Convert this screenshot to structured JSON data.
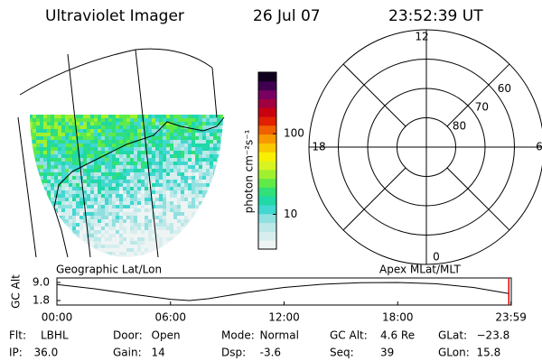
{
  "header": {
    "title": "Ultraviolet Imager",
    "date": "26 Jul 07",
    "time": "23:52:39 UT"
  },
  "colorbar": {
    "label": "photon cm⁻²s⁻¹",
    "scale": "log",
    "lim": [
      3.7,
      580
    ],
    "ticks": [
      10,
      100
    ],
    "colors": [
      "#eef4f4",
      "#d8eeee",
      "#bce8e8",
      "#90e0e0",
      "#40d8d0",
      "#20d8a8",
      "#30e078",
      "#60ea48",
      "#a0f030",
      "#d8f420",
      "#f8f000",
      "#f8c800",
      "#f89800",
      "#f06000",
      "#e02000",
      "#c80010",
      "#a00040",
      "#780060",
      "#400050",
      "#100020"
    ]
  },
  "polar": {
    "rlim": [
      90,
      50
    ],
    "mlt_labels": [
      12,
      18,
      6,
      0
    ],
    "lat_labels": [
      60,
      70,
      80
    ]
  },
  "captions": {
    "left": "Geographic Lat/Lon",
    "right": "Apex MLat/MLT"
  },
  "altitude": {
    "ylabel": "GC Alt",
    "ylim": [
      0,
      10.8
    ],
    "yticks": [
      {
        "value": 9,
        "label": "9.0"
      },
      1.8
    ],
    "xlim": [
      0,
      24
    ],
    "xticks": [
      {
        "value": 0,
        "label": "00:00"
      },
      {
        "value": 6,
        "label": "06:00"
      },
      {
        "value": 12,
        "label": "12:00"
      },
      {
        "value": 18,
        "label": "18:00"
      },
      {
        "value": 23.983,
        "label": "23:59"
      }
    ],
    "x": [
      0,
      2,
      4,
      6,
      7,
      8,
      10,
      12,
      14,
      16,
      18,
      20,
      22,
      23.87
    ],
    "values": [
      8.2,
      6.5,
      4.3,
      2.3,
      1.8,
      2.5,
      5.0,
      7.0,
      8.3,
      8.9,
      9.0,
      8.5,
      7.0,
      4.6
    ],
    "marker_color": "#e00000"
  },
  "status": [
    [
      {
        "label": "Flt:",
        "value": "LBHL"
      },
      {
        "label": "Door:",
        "value": "Open"
      },
      {
        "label": "Mode:",
        "value": "Normal"
      },
      {
        "label": "GC Alt:",
        "value": "4.6 Re"
      },
      {
        "label": "GLat:",
        "value": "−23.8"
      }
    ],
    [
      {
        "label": "IP:",
        "value": "36.0"
      },
      {
        "label": "Gain:",
        "value": "14"
      },
      {
        "label": "Dsp:",
        "value": "  -3.6"
      },
      {
        "label": "Seq:",
        "value": "39"
      },
      {
        "label": "GLon:",
        "value": "15.8"
      }
    ]
  ]
}
